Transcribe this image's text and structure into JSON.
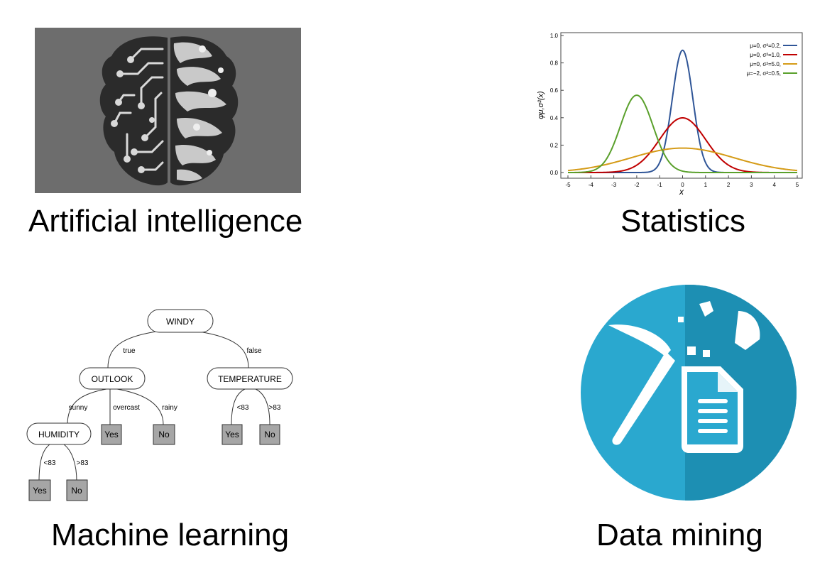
{
  "captions": {
    "ai": "Artificial intelligence",
    "statistics": "Statistics",
    "ml": "Machine learning",
    "dm": "Data mining"
  },
  "colors": {
    "brain_bg": "#6d6d6d",
    "curve_blue": "#2f5597",
    "curve_red": "#c00000",
    "curve_orange": "#d59b17",
    "curve_green": "#5aa02c",
    "dm_blue": "#2aa8cf",
    "dm_dark": "#1d8fb3"
  },
  "chart_data": {
    "type": "line",
    "xlabel": "x",
    "ylabel": "φμ,σ²(x)",
    "xlim": [
      -5,
      5
    ],
    "ylim": [
      0,
      1.0
    ],
    "xticks": [
      "-5",
      "-4",
      "-3",
      "-2",
      "-1",
      "0",
      "1",
      "2",
      "3",
      "4",
      "5"
    ],
    "yticks": [
      "0.0",
      "0.2",
      "0.4",
      "0.6",
      "0.8",
      "1.0"
    ],
    "legend_position": "top-right",
    "series": [
      {
        "name": "μ=0,   σ²=0.2,",
        "mu": 0,
        "var": 0.2,
        "color": "#2f5597"
      },
      {
        "name": "μ=0,   σ²=1.0,",
        "mu": 0,
        "var": 1.0,
        "color": "#c00000"
      },
      {
        "name": "μ=0,   σ²=5.0,",
        "mu": 0,
        "var": 5.0,
        "color": "#d59b17"
      },
      {
        "name": "μ=−2, σ²=0.5,",
        "mu": -2,
        "var": 0.5,
        "color": "#5aa02c"
      }
    ]
  },
  "tree": {
    "root": "WINDY",
    "true_edge": "true",
    "false_edge": "false",
    "outlook": "OUTLOOK",
    "temperature": "TEMPERATURE",
    "humidity": "HUMIDITY",
    "sunny": "sunny",
    "overcast": "overcast",
    "rainy": "rainy",
    "lt83": "<83",
    "gt83": ">83",
    "yes": "Yes",
    "no": "No"
  }
}
